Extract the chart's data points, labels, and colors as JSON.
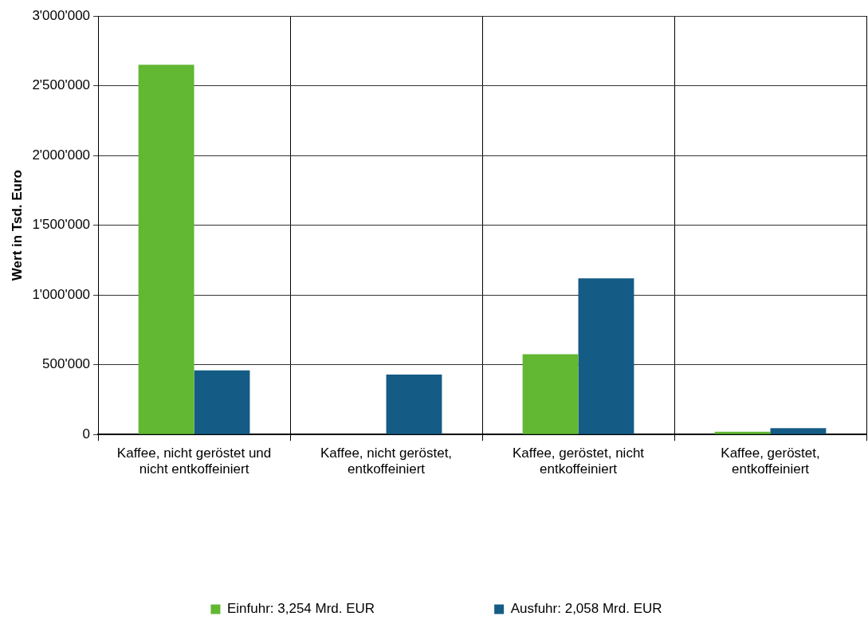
{
  "chart_data": {
    "type": "bar",
    "ylabel": "Wert in Tsd. Euro",
    "categories": [
      "Kaffee, nicht geröstet und nicht entkoffeiniert",
      "Kaffee, nicht geröstet, entkoffeiniert",
      "Kaffee, geröstet, nicht entkoffeiniert",
      "Kaffee, geröstet, entkoffeiniert"
    ],
    "series": [
      {
        "name": "Einfuhr: 3,254 Mrd. EUR",
        "color": "#62b733",
        "values": [
          2650000,
          0,
          575000,
          20000
        ]
      },
      {
        "name": "Ausfuhr: 2,058 Mrd. EUR",
        "color": "#145c85",
        "values": [
          460000,
          430000,
          1120000,
          45000
        ]
      }
    ],
    "ylim": [
      0,
      3000000
    ],
    "yticks": [
      {
        "value": 0,
        "label": "0"
      },
      {
        "value": 500000,
        "label": "500'000"
      },
      {
        "value": 1000000,
        "label": "1'000'000"
      },
      {
        "value": 1500000,
        "label": "1'500'000"
      },
      {
        "value": 2000000,
        "label": "2'000'000"
      },
      {
        "value": 2500000,
        "label": "2'500'000"
      },
      {
        "value": 3000000,
        "label": "3'000'000"
      }
    ],
    "grid": true,
    "legend": "bottom"
  }
}
